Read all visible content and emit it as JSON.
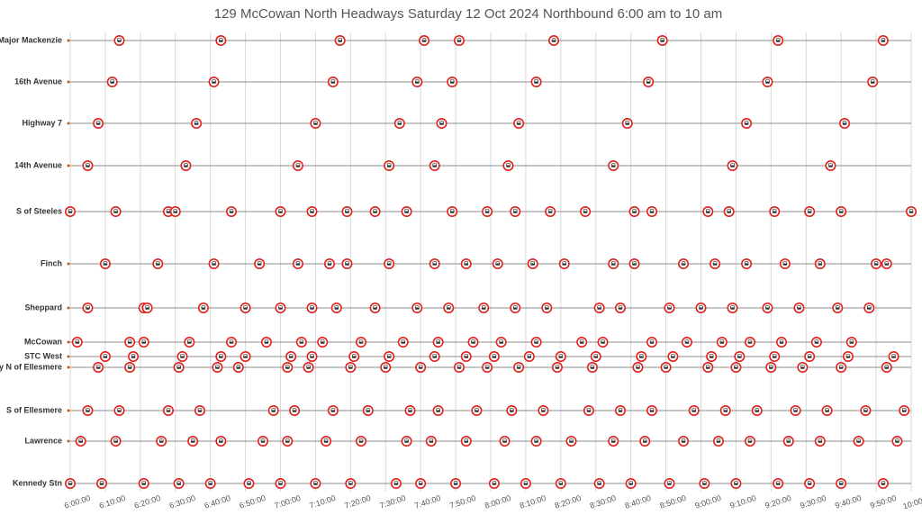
{
  "chart_data": {
    "type": "timeline",
    "title": "129 McCowan North Headways Saturday 12 Oct 2024 Northbound 6:00 am to 10 am",
    "xlim": [
      "6:00:00",
      "10:00:00"
    ],
    "xticks": [
      "6:00:00",
      "6:10:00",
      "6:20:00",
      "6:30:00",
      "6:40:00",
      "6:50:00",
      "7:00:00",
      "7:10:00",
      "7:20:00",
      "7:30:00",
      "7:40:00",
      "7:50:00",
      "8:00:00",
      "8:10:00",
      "8:20:00",
      "8:30:00",
      "8:40:00",
      "8:50:00",
      "9:00:00",
      "9:10:00",
      "9:20:00",
      "9:30:00",
      "9:40:00",
      "9:50:00",
      "10:00:00"
    ],
    "grid": true,
    "color": "#e0201b",
    "series": [
      {
        "name": "S of Major Mackenzie",
        "x": [
          "6:14:00",
          "6:43:00",
          "7:17:00",
          "7:41:00",
          "7:51:00",
          "8:18:00",
          "8:49:00",
          "9:22:00",
          "9:52:00"
        ]
      },
      {
        "name": "16th Avenue",
        "x": [
          "6:12:00",
          "6:41:00",
          "7:15:00",
          "7:39:00",
          "7:49:00",
          "8:13:00",
          "8:45:00",
          "9:19:00",
          "9:49:00"
        ]
      },
      {
        "name": "Highway 7",
        "x": [
          "6:08:00",
          "6:36:00",
          "7:10:00",
          "7:34:00",
          "7:46:00",
          "8:08:00",
          "8:39:00",
          "9:13:00",
          "9:41:00"
        ]
      },
      {
        "name": "14th Avenue",
        "x": [
          "6:05:00",
          "6:33:00",
          "7:05:00",
          "7:31:00",
          "7:44:00",
          "8:05:00",
          "8:35:00",
          "9:09:00",
          "9:37:00"
        ]
      },
      {
        "name": "S of Steeles",
        "x": [
          "6:00:00",
          "6:13:00",
          "6:28:00",
          "6:30:00",
          "6:46:00",
          "7:00:00",
          "7:09:00",
          "7:19:00",
          "7:27:00",
          "7:36:00",
          "7:49:00",
          "7:59:00",
          "8:07:00",
          "8:17:00",
          "8:27:00",
          "8:41:00",
          "8:46:00",
          "9:02:00",
          "9:08:00",
          "9:21:00",
          "9:31:00",
          "9:40:00",
          "10:00:00"
        ]
      },
      {
        "name": "Finch",
        "x": [
          "6:10:00",
          "6:25:00",
          "6:41:00",
          "6:54:00",
          "7:05:00",
          "7:14:00",
          "7:19:00",
          "7:31:00",
          "7:44:00",
          "7:53:00",
          "8:02:00",
          "8:12:00",
          "8:21:00",
          "8:35:00",
          "8:41:00",
          "8:55:00",
          "9:04:00",
          "9:13:00",
          "9:24:00",
          "9:34:00",
          "9:50:00",
          "9:53:00"
        ]
      },
      {
        "name": "Sheppard",
        "x": [
          "6:05:00",
          "6:21:00",
          "6:22:00",
          "6:38:00",
          "6:50:00",
          "7:00:00",
          "7:09:00",
          "7:16:00",
          "7:27:00",
          "7:39:00",
          "7:48:00",
          "7:58:00",
          "8:07:00",
          "8:16:00",
          "8:31:00",
          "8:37:00",
          "8:51:00",
          "9:00:00",
          "9:09:00",
          "9:19:00",
          "9:28:00",
          "9:39:00",
          "9:48:00"
        ]
      },
      {
        "name": "McCowan",
        "x": [
          "6:02:00",
          "6:17:00",
          "6:21:00",
          "6:34:00",
          "6:46:00",
          "6:56:00",
          "7:06:00",
          "7:12:00",
          "7:23:00",
          "7:35:00",
          "7:45:00",
          "7:55:00",
          "8:03:00",
          "8:13:00",
          "8:26:00",
          "8:32:00",
          "8:46:00",
          "8:56:00",
          "9:06:00",
          "9:14:00",
          "9:23:00",
          "9:33:00",
          "9:43:00"
        ]
      },
      {
        "name": "STC West",
        "x": [
          "6:10:00",
          "6:18:00",
          "6:32:00",
          "6:43:00",
          "6:50:00",
          "7:03:00",
          "7:09:00",
          "7:21:00",
          "7:31:00",
          "7:44:00",
          "7:53:00",
          "8:01:00",
          "8:11:00",
          "8:20:00",
          "8:30:00",
          "8:43:00",
          "8:52:00",
          "9:03:00",
          "9:11:00",
          "9:21:00",
          "9:31:00",
          "9:42:00",
          "9:55:00"
        ]
      },
      {
        "name": "Brimley N of Ellesmere",
        "x": [
          "6:08:00",
          "6:17:00",
          "6:31:00",
          "6:42:00",
          "6:48:00",
          "7:02:00",
          "7:08:00",
          "7:20:00",
          "7:30:00",
          "7:40:00",
          "7:51:00",
          "7:59:00",
          "8:08:00",
          "8:19:00",
          "8:29:00",
          "8:42:00",
          "8:50:00",
          "9:02:00",
          "9:10:00",
          "9:20:00",
          "9:29:00",
          "9:40:00",
          "9:53:00"
        ]
      },
      {
        "name": "S of Ellesmere",
        "x": [
          "6:05:00",
          "6:14:00",
          "6:28:00",
          "6:37:00",
          "6:58:00",
          "7:04:00",
          "7:15:00",
          "7:25:00",
          "7:37:00",
          "7:45:00",
          "7:56:00",
          "8:06:00",
          "8:15:00",
          "8:28:00",
          "8:37:00",
          "8:46:00",
          "8:58:00",
          "9:07:00",
          "9:16:00",
          "9:27:00",
          "9:36:00",
          "9:47:00",
          "9:58:00"
        ]
      },
      {
        "name": "Lawrence",
        "x": [
          "6:03:00",
          "6:13:00",
          "6:26:00",
          "6:35:00",
          "6:43:00",
          "6:55:00",
          "7:02:00",
          "7:13:00",
          "7:23:00",
          "7:36:00",
          "7:43:00",
          "7:53:00",
          "8:04:00",
          "8:13:00",
          "8:23:00",
          "8:35:00",
          "8:44:00",
          "8:55:00",
          "9:05:00",
          "9:14:00",
          "9:25:00",
          "9:34:00",
          "9:45:00",
          "9:56:00"
        ]
      },
      {
        "name": "Kennedy Stn",
        "x": [
          "6:00:00",
          "6:09:00",
          "6:21:00",
          "6:31:00",
          "6:40:00",
          "6:51:00",
          "7:00:00",
          "7:10:00",
          "7:20:00",
          "7:33:00",
          "7:40:00",
          "7:50:00",
          "8:01:00",
          "8:10:00",
          "8:20:00",
          "8:31:00",
          "8:40:00",
          "8:51:00",
          "9:01:00",
          "9:10:00",
          "9:22:00",
          "9:31:00",
          "9:40:00",
          "9:52:00"
        ]
      }
    ]
  }
}
